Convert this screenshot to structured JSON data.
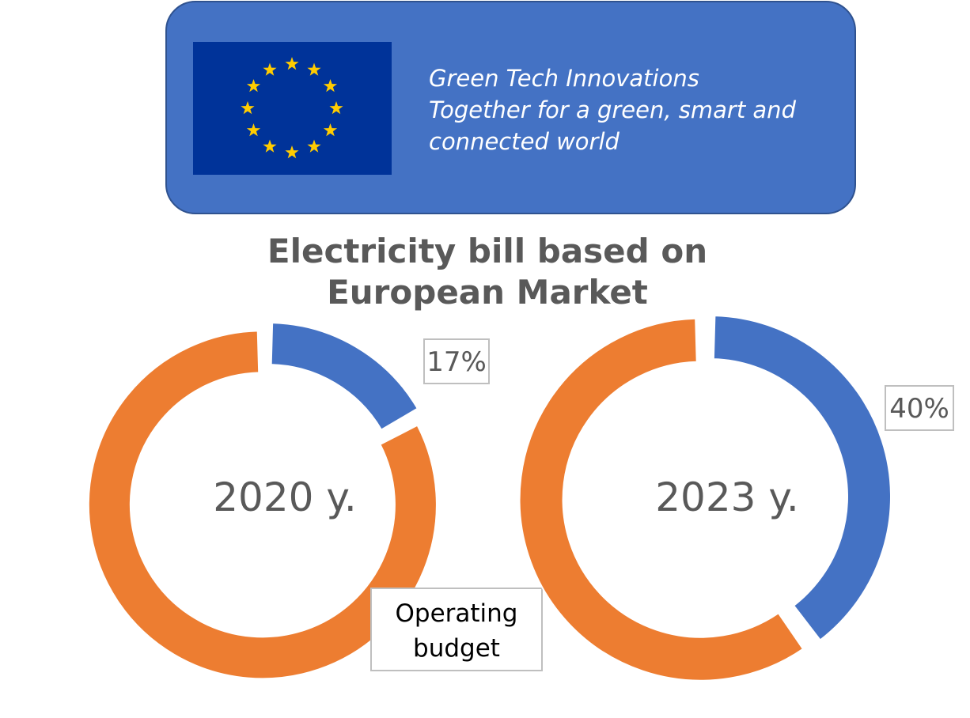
{
  "banner": {
    "lines": [
      "Green Tech Innovations",
      "Together for a green, smart and",
      "connected world"
    ],
    "flag_background": "#003399",
    "flag_star_color": "#FFCC00"
  },
  "colors": {
    "series_blue": "#4472C4",
    "series_orange": "#ED7D31",
    "text_gray": "#595959"
  },
  "chart_data": {
    "title": "Electricity bill based on European Market",
    "title_lines": [
      "Electricity bill based on",
      "European Market"
    ],
    "type": "pie",
    "charts": [
      {
        "center_label": "2020 y.",
        "slices": [
          {
            "value": 17,
            "color": "#4472C4",
            "label": "17%"
          },
          {
            "value": 83,
            "color": "#ED7D31",
            "label": "Operating budget"
          }
        ]
      },
      {
        "center_label": "2023 y.",
        "slices": [
          {
            "value": 40,
            "color": "#4472C4",
            "label": "40%"
          },
          {
            "value": 60,
            "color": "#ED7D31",
            "label": ""
          }
        ]
      }
    ]
  }
}
